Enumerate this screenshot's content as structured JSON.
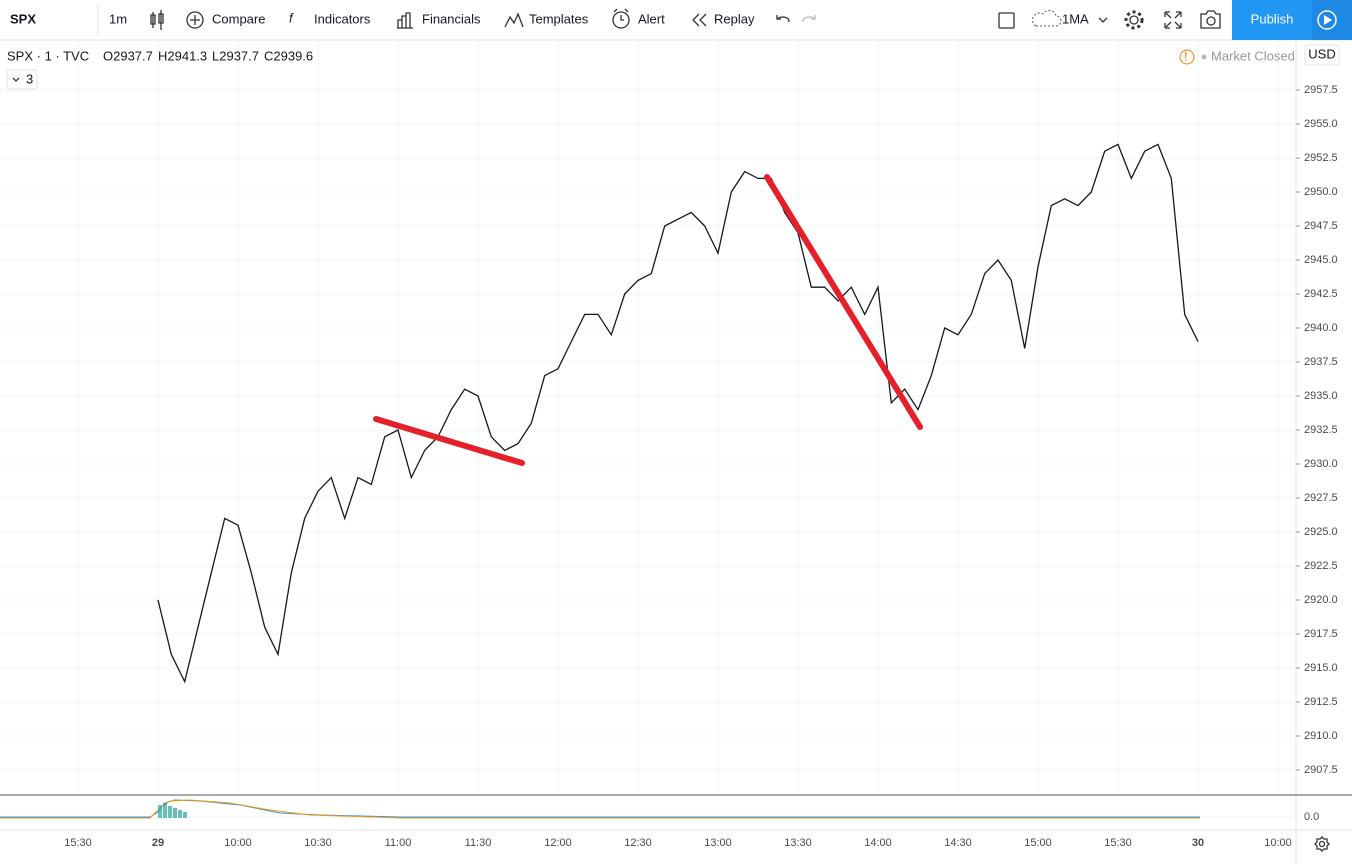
{
  "toolbar": {
    "symbol": "SPX",
    "interval": "1m",
    "items": [
      "Compare",
      "Indicators",
      "Financials",
      "Templates",
      "Alert",
      "Replay"
    ],
    "ma": "1MA",
    "publish": "Publish"
  },
  "legend": {
    "symbol": "SPX · 1 · TVC",
    "ohlc": [
      "O2937.7",
      "H2941.3",
      "L2937.7",
      "C2939.6"
    ],
    "collapsed_count": "3",
    "status": "Market Closed"
  },
  "chart_data": {
    "type": "line",
    "color": "#131722",
    "grid": true,
    "currency": "USD",
    "x": [
      0,
      5,
      10,
      15,
      20,
      25,
      30,
      35,
      40,
      45,
      50,
      55,
      60,
      65,
      70,
      75,
      80,
      85,
      90,
      95,
      100,
      105,
      110,
      115,
      120,
      125,
      130,
      135,
      140,
      145,
      150,
      155,
      160,
      165,
      170,
      175,
      180,
      185,
      190,
      195,
      200,
      205,
      210,
      215,
      220,
      225,
      230,
      235,
      240,
      245,
      250,
      255,
      260,
      265,
      270,
      275,
      280,
      285,
      290,
      295,
      300,
      305,
      310,
      315,
      320,
      325,
      330,
      335,
      340,
      345,
      350,
      355,
      360,
      365,
      370,
      375,
      380,
      385,
      390
    ],
    "values": [
      2920,
      2916,
      2914,
      2918,
      2922,
      2926,
      2925.5,
      2922,
      2918,
      2916,
      2922,
      2926,
      2928,
      2929,
      2926,
      2929,
      2928.5,
      2932,
      2932.5,
      2929,
      2931,
      2932,
      2934,
      2935.5,
      2935,
      2932,
      2931,
      2931.5,
      2933,
      2936.5,
      2937,
      2939,
      2941,
      2941,
      2939.5,
      2942.5,
      2943.5,
      2944,
      2947.5,
      2948,
      2948.5,
      2947.5,
      2945.5,
      2950,
      2951.5,
      2951,
      2951,
      2948.5,
      2947,
      2943,
      2943,
      2942,
      2943,
      2941,
      2943,
      2934.5,
      2935.5,
      2934,
      2936.5,
      2940,
      2939.5,
      2941,
      2944,
      2945,
      2943.5,
      2938.5,
      2944.5,
      2949,
      2949.5,
      2949,
      2950,
      2953,
      2953.5,
      2951,
      2953,
      2953.5,
      2951,
      2941,
      2939
    ],
    "xlim": [
      -59.25,
      426.75
    ],
    "xticks": [
      {
        "value": -30,
        "label": "15:30"
      },
      {
        "value": 0,
        "label": "29"
      },
      {
        "value": 30,
        "label": "10:00"
      },
      {
        "value": 60,
        "label": "10:30"
      },
      {
        "value": 90,
        "label": "11:00"
      },
      {
        "value": 120,
        "label": "11:30"
      },
      {
        "value": 150,
        "label": "12:00"
      },
      {
        "value": 180,
        "label": "12:30"
      },
      {
        "value": 210,
        "label": "13:00"
      },
      {
        "value": 240,
        "label": "13:30"
      },
      {
        "value": 270,
        "label": "14:00"
      },
      {
        "value": 300,
        "label": "14:30"
      },
      {
        "value": 330,
        "label": "15:00"
      },
      {
        "value": 360,
        "label": "15:30"
      },
      {
        "value": 390,
        "label": "30"
      },
      {
        "value": 420,
        "label": "10:00"
      }
    ],
    "ylim": [
      2905.66,
      2961.18
    ],
    "yticks": [
      2907.5,
      {
        "value": 2910,
        "label": "2910.0"
      },
      2912.5,
      {
        "value": 2915,
        "label": "2915.0"
      },
      2917.5,
      {
        "value": 2920,
        "label": "2920.0"
      },
      2922.5,
      {
        "value": 2925,
        "label": "2925.0"
      },
      2927.5,
      {
        "value": 2930,
        "label": "2930.0"
      },
      2932.5,
      {
        "value": 2935,
        "label": "2935.0"
      },
      2937.5,
      {
        "value": 2940,
        "label": "2940.0"
      },
      2942.5,
      {
        "value": 2945,
        "label": "2945.0"
      },
      2947.5,
      {
        "value": 2950,
        "label": "2950.0"
      },
      2952.5,
      {
        "value": 2955,
        "label": "2955.0"
      },
      2957.5
    ]
  },
  "indicator": {
    "yticks": [
      {
        "value": 0,
        "label": "0.0"
      }
    ]
  }
}
